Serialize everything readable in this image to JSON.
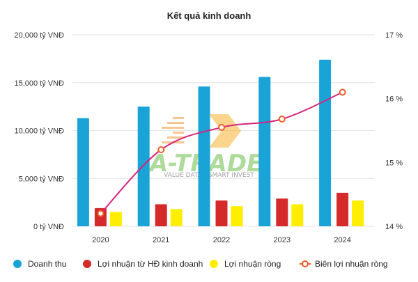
{
  "chart_data": {
    "type": "bar",
    "title": "Kết quả kinh doanh",
    "categories": [
      "2020",
      "2021",
      "2022",
      "2023",
      "2024"
    ],
    "series": [
      {
        "name": "Doanh thu",
        "type": "bar",
        "axis": "left",
        "color": "#1aa3d6",
        "values": [
          11300,
          12500,
          14600,
          15600,
          17400
        ]
      },
      {
        "name": "Lợi nhuận từ HĐ kinh doanh",
        "type": "bar",
        "axis": "left",
        "color": "#d42a2a",
        "values": [
          1900,
          2300,
          2700,
          2900,
          3500
        ]
      },
      {
        "name": "Lợi nhuận ròng",
        "type": "bar",
        "axis": "left",
        "color": "#ffee00",
        "values": [
          1500,
          1800,
          2100,
          2300,
          2700
        ]
      },
      {
        "name": "Biên lợi nhuận ròng",
        "type": "line",
        "axis": "right",
        "color": "#d6247a",
        "marker_color": "#f05a28",
        "values": [
          14.2,
          15.2,
          15.55,
          15.68,
          16.1
        ]
      }
    ],
    "y_left": {
      "ylim": [
        0,
        20000
      ],
      "ticks": [
        0,
        5000,
        10000,
        15000,
        20000
      ],
      "tick_labels": [
        "0 tỷ VNĐ",
        "5,000 tỷ VNĐ",
        "10,000 tỷ VNĐ",
        "15,000 tỷ VNĐ",
        "20,000 tỷ VNĐ"
      ]
    },
    "y_right": {
      "ylim": [
        14,
        17
      ],
      "ticks": [
        14,
        15,
        16,
        17
      ],
      "tick_labels": [
        "14 %",
        "15 %",
        "16 %",
        "17 %"
      ]
    },
    "grid": true,
    "legend": "bottom"
  },
  "watermark": {
    "brand": "A-TRADE",
    "tagline": "VALUE DATA - SMART INVEST"
  }
}
